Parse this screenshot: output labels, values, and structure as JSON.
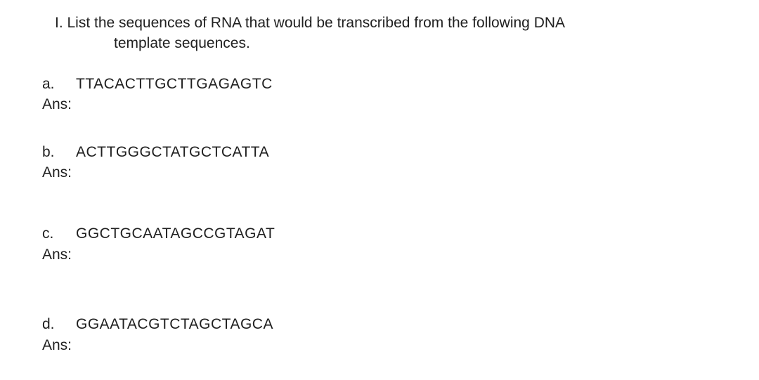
{
  "title": {
    "prefix": "I.",
    "line1": "I.   List the sequences of RNA that would be transcribed from the following DNA",
    "line2": "template sequences."
  },
  "ans_label": "Ans:",
  "items": [
    {
      "label": "a.",
      "sequence": "TTACACTTGCTTGAGAGTC"
    },
    {
      "label": "b.",
      "sequence": "ACTTGGGCTATGCTCATTA"
    },
    {
      "label": "c.",
      "sequence": "GGCTGCAATAGCCGTAGAT"
    },
    {
      "label": "d.",
      "sequence": "GGAATACGTCTAGCTAGCA"
    }
  ],
  "colors": {
    "text": "#202020",
    "background": "#ffffff"
  },
  "font": {
    "family": "Arial",
    "size_pt": 16
  }
}
